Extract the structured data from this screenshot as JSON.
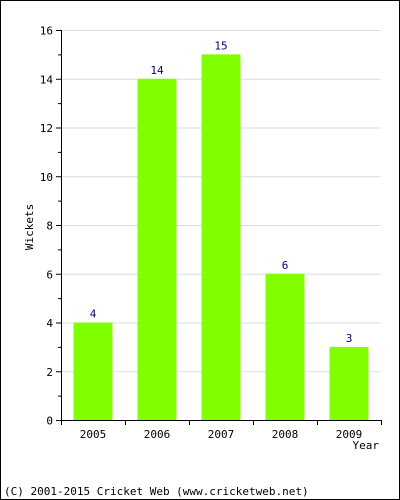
{
  "chart_data": {
    "type": "bar",
    "categories": [
      "2005",
      "2006",
      "2007",
      "2008",
      "2009"
    ],
    "values": [
      4,
      14,
      15,
      6,
      3
    ],
    "data_labels": [
      "4",
      "14",
      "15",
      "6",
      "3"
    ],
    "ylabel": "Wickets",
    "xlabel": "Year",
    "ylim": [
      0,
      16
    ],
    "yticks": [
      0,
      2,
      4,
      6,
      8,
      10,
      12,
      14,
      16
    ],
    "ytick_labels": [
      "0",
      "2",
      "4",
      "6",
      "8",
      "10",
      "12",
      "14",
      "16"
    ],
    "grid": true,
    "bar_color": "#80ff00",
    "label_color": "#000080"
  },
  "footer": {
    "copyright": "(C) 2001-2015 Cricket Web (www.cricketweb.net)"
  }
}
